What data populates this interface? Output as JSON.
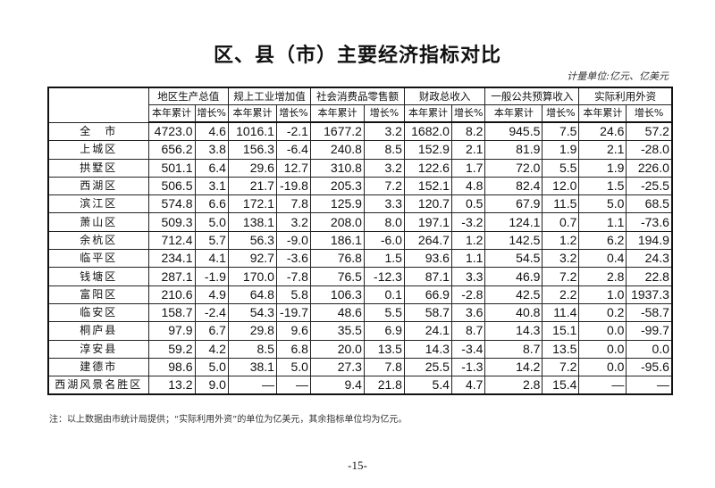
{
  "title": "区、县（市）主要经济指标对比",
  "unit": "计量单位:亿元、亿美元",
  "header": {
    "groups": [
      "地区生产总值",
      "规上工业增加值",
      "社会消费品零售额",
      "财政总收入",
      "一般公共预算收入",
      "实际利用外资"
    ],
    "sub": [
      "本年累计",
      "增长%"
    ]
  },
  "rows": [
    {
      "name": "全　市",
      "values": [
        "4723.0",
        "4.6",
        "1016.1",
        "-2.1",
        "1677.2",
        "3.2",
        "1682.0",
        "8.2",
        "945.5",
        "7.5",
        "24.6",
        "57.2"
      ]
    },
    {
      "name": "上城区",
      "values": [
        "656.2",
        "3.8",
        "156.3",
        "-6.4",
        "240.8",
        "8.5",
        "152.9",
        "2.1",
        "81.9",
        "1.9",
        "2.1",
        "-28.0"
      ]
    },
    {
      "name": "拱墅区",
      "values": [
        "501.1",
        "6.4",
        "29.6",
        "12.7",
        "310.8",
        "3.2",
        "122.6",
        "1.7",
        "72.0",
        "5.5",
        "1.9",
        "226.0"
      ]
    },
    {
      "name": "西湖区",
      "values": [
        "506.5",
        "3.1",
        "21.7",
        "-19.8",
        "205.3",
        "7.2",
        "152.1",
        "4.8",
        "82.4",
        "12.0",
        "1.5",
        "-25.5"
      ]
    },
    {
      "name": "滨江区",
      "values": [
        "574.8",
        "6.6",
        "172.1",
        "7.8",
        "125.9",
        "3.3",
        "120.7",
        "0.5",
        "67.9",
        "11.5",
        "5.0",
        "68.5"
      ]
    },
    {
      "name": "萧山区",
      "values": [
        "509.3",
        "5.0",
        "138.1",
        "3.2",
        "208.0",
        "8.0",
        "197.1",
        "-3.2",
        "124.1",
        "0.7",
        "1.1",
        "-73.6"
      ]
    },
    {
      "name": "余杭区",
      "values": [
        "712.4",
        "5.7",
        "56.3",
        "-9.0",
        "186.1",
        "-6.0",
        "264.7",
        "1.2",
        "142.5",
        "1.2",
        "6.2",
        "194.9"
      ]
    },
    {
      "name": "临平区",
      "values": [
        "234.1",
        "4.1",
        "92.7",
        "-3.6",
        "76.8",
        "1.5",
        "93.6",
        "1.1",
        "54.5",
        "3.2",
        "0.4",
        "24.3"
      ]
    },
    {
      "name": "钱塘区",
      "values": [
        "287.1",
        "-1.9",
        "170.0",
        "-7.8",
        "76.5",
        "-12.3",
        "87.1",
        "3.3",
        "46.9",
        "7.2",
        "2.8",
        "22.8"
      ]
    },
    {
      "name": "富阳区",
      "values": [
        "210.6",
        "4.9",
        "64.8",
        "5.8",
        "106.3",
        "0.1",
        "66.9",
        "-2.8",
        "42.5",
        "2.2",
        "1.0",
        "1937.3"
      ]
    },
    {
      "name": "临安区",
      "values": [
        "158.7",
        "-2.4",
        "54.3",
        "-19.7",
        "48.6",
        "5.5",
        "58.7",
        "3.6",
        "40.8",
        "11.4",
        "0.2",
        "-58.7"
      ]
    },
    {
      "name": "桐庐县",
      "values": [
        "97.9",
        "6.7",
        "29.8",
        "9.6",
        "35.5",
        "6.9",
        "24.1",
        "8.7",
        "14.3",
        "15.1",
        "0.0",
        "-99.7"
      ]
    },
    {
      "name": "淳安县",
      "values": [
        "59.2",
        "4.2",
        "8.5",
        "6.8",
        "20.0",
        "13.5",
        "14.3",
        "-3.4",
        "8.7",
        "13.5",
        "0.0",
        "0.0"
      ]
    },
    {
      "name": "建德市",
      "values": [
        "98.6",
        "5.0",
        "38.1",
        "5.0",
        "27.3",
        "7.8",
        "25.5",
        "-1.3",
        "14.2",
        "7.2",
        "0.0",
        "-95.6"
      ]
    },
    {
      "name": "西湖风景名胜区",
      "values": [
        "13.2",
        "9.0",
        "—",
        "—",
        "9.4",
        "21.8",
        "5.4",
        "4.7",
        "2.8",
        "15.4",
        "—",
        "—"
      ]
    }
  ],
  "note": "注：以上数据由市统计局提供；“实际利用外资”的单位为亿美元，其余指标单位均为亿元。",
  "page_number": "-15-"
}
